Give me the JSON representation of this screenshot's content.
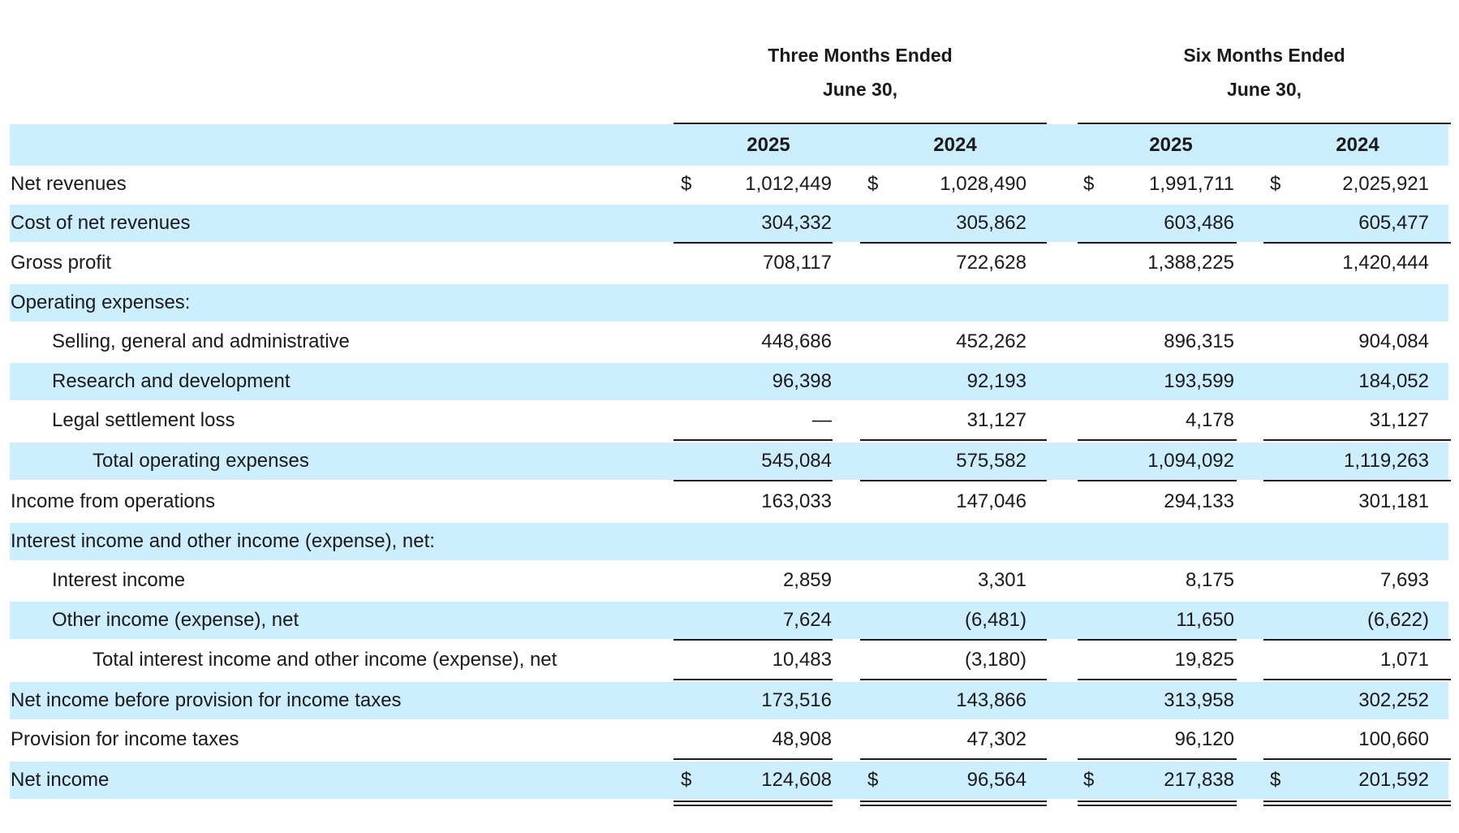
{
  "header": {
    "three_months": {
      "line1": "Three Months Ended",
      "line2": "June 30,"
    },
    "six_months": {
      "line1": "Six Months Ended",
      "line2": "June 30,"
    },
    "years": [
      "2025",
      "2024",
      "2025",
      "2024"
    ]
  },
  "rows": [
    {
      "label": "Net revenues",
      "currency": "$",
      "values": [
        "1,012,449",
        "1,028,490",
        "1,991,711",
        "2,025,921"
      ]
    },
    {
      "label": "Cost of net revenues",
      "currency": "",
      "values": [
        "304,332",
        "305,862",
        "603,486",
        "605,477"
      ]
    },
    {
      "label": "Gross profit",
      "currency": "",
      "values": [
        "708,117",
        "722,628",
        "1,388,225",
        "1,420,444"
      ]
    },
    {
      "label": "Operating expenses:",
      "currency": "",
      "values": [
        "",
        "",
        "",
        ""
      ]
    },
    {
      "label": "Selling, general and administrative",
      "currency": "",
      "values": [
        "448,686",
        "452,262",
        "896,315",
        "904,084"
      ]
    },
    {
      "label": "Research and development",
      "currency": "",
      "values": [
        "96,398",
        "92,193",
        "193,599",
        "184,052"
      ]
    },
    {
      "label": "Legal settlement loss",
      "currency": "",
      "values": [
        "—",
        "31,127",
        "4,178",
        "31,127"
      ]
    },
    {
      "label": "Total operating expenses",
      "currency": "",
      "values": [
        "545,084",
        "575,582",
        "1,094,092",
        "1,119,263"
      ]
    },
    {
      "label": "Income from operations",
      "currency": "",
      "values": [
        "163,033",
        "147,046",
        "294,133",
        "301,181"
      ]
    },
    {
      "label": "Interest income and other income (expense), net:",
      "currency": "",
      "values": [
        "",
        "",
        "",
        ""
      ]
    },
    {
      "label": "Interest income",
      "currency": "",
      "values": [
        "2,859",
        "3,301",
        "8,175",
        "7,693"
      ]
    },
    {
      "label": "Other income (expense), net",
      "currency": "",
      "values": [
        "7,624",
        "(6,481)",
        "11,650",
        "(6,622)"
      ]
    },
    {
      "label": "Total interest income and other income (expense), net",
      "currency": "",
      "values": [
        "10,483",
        "(3,180)",
        "19,825",
        "1,071"
      ]
    },
    {
      "label": "Net income before provision for income taxes",
      "currency": "",
      "values": [
        "173,516",
        "143,866",
        "313,958",
        "302,252"
      ]
    },
    {
      "label": "Provision for income taxes",
      "currency": "",
      "values": [
        "48,908",
        "47,302",
        "96,120",
        "100,660"
      ]
    },
    {
      "label": "Net income",
      "currency": "$",
      "values": [
        "124,608",
        "96,564",
        "217,838",
        "201,592"
      ]
    }
  ]
}
